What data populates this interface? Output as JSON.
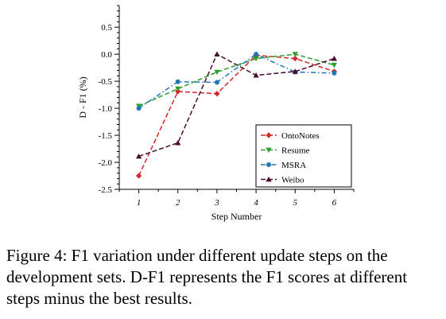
{
  "chart_data": {
    "type": "line",
    "xlabel": "Step Number",
    "ylabel": "D - F1 (%)",
    "x": [
      1,
      2,
      3,
      4,
      5,
      6
    ],
    "x_tick_labels": [
      "1",
      "2",
      "3",
      "4",
      "5",
      "6"
    ],
    "xlim": [
      0.5,
      6.5
    ],
    "ylim": [
      -2.5,
      0.9
    ],
    "y_ticks": [
      0.5,
      0.0,
      -0.5,
      -1.0,
      -1.5,
      -2.0,
      -2.5
    ],
    "y_tick_labels": [
      "0.5",
      "0.0",
      "-0.5",
      "-1.0",
      "-1.5",
      "-2.0",
      "-2.5"
    ],
    "legend_position": "bottom-right",
    "grid": false,
    "series": [
      {
        "name": "OntoNotes",
        "color": "#d62728",
        "marker": "diamond",
        "dash": "dash",
        "values": [
          -2.25,
          -0.69,
          -0.73,
          -0.02,
          -0.08,
          -0.32
        ]
      },
      {
        "name": "Resume",
        "color": "#2ca02c",
        "marker": "triangle-down",
        "dash": "dash",
        "values": [
          -0.96,
          -0.64,
          -0.33,
          -0.08,
          0.0,
          -0.2
        ]
      },
      {
        "name": "MSRA",
        "color": "#1f77b4",
        "marker": "circle",
        "dash": "dashdot",
        "values": [
          -1.0,
          -0.51,
          -0.52,
          0.0,
          -0.33,
          -0.35
        ]
      },
      {
        "name": "Weibo",
        "color": "#4a0a2e",
        "marker": "triangle-up",
        "dash": "dash",
        "values": [
          -1.89,
          -1.64,
          0.0,
          -0.39,
          -0.32,
          -0.08
        ]
      }
    ]
  },
  "caption": "Figure 4: F1 variation under different update steps on the development sets. D-F1 represents the F1 scores at different steps minus the best results."
}
